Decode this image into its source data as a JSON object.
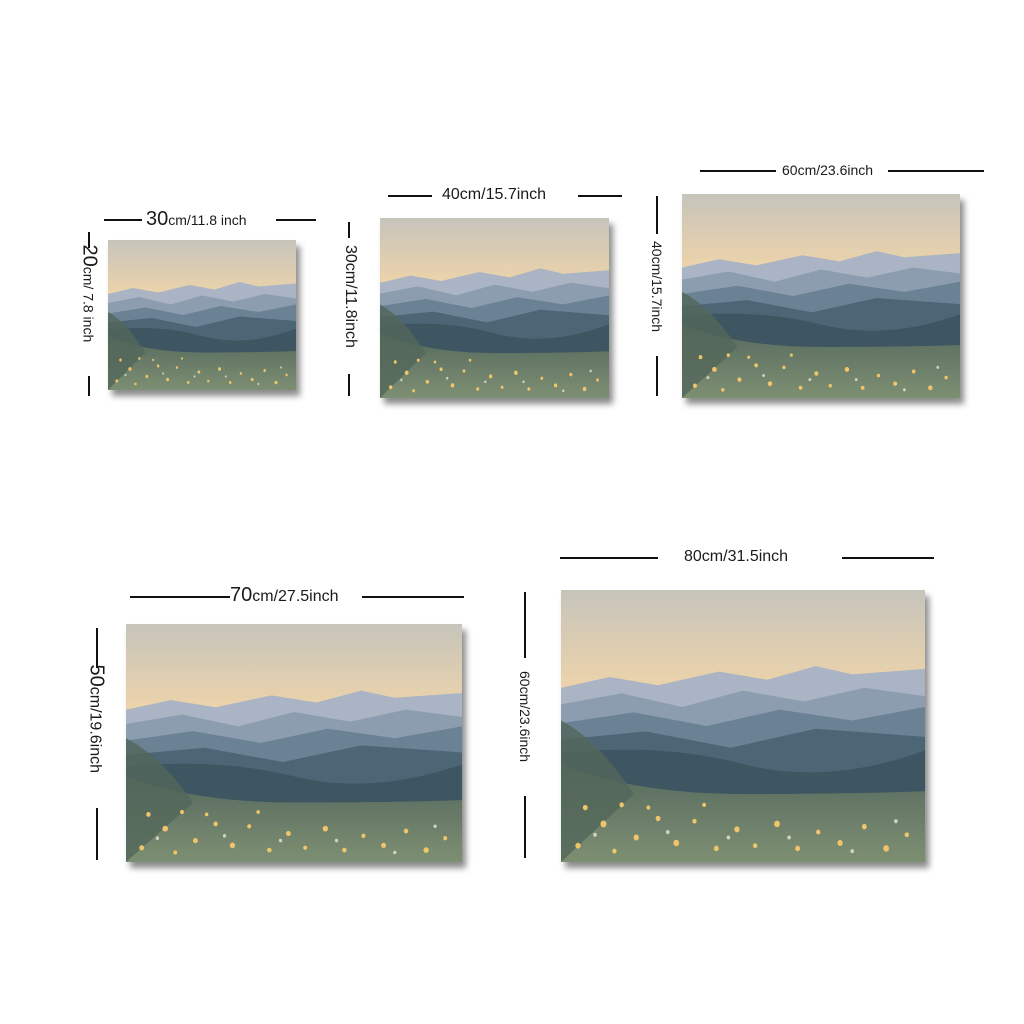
{
  "sizes": [
    {
      "width_cm": "30",
      "width_in": "cm/11.8 inch",
      "height_cm": "20",
      "height_in": "cm/ 7.8 inch"
    },
    {
      "width_label": "40cm/15.7inch",
      "height_label": "30cm/11.8inch"
    },
    {
      "width_label": "60cm/23.6inch",
      "height_label": "40cm/15.7inch"
    },
    {
      "width_cm": "70",
      "width_in": "cm/27.5inch",
      "height_cm": "50",
      "height_in": "cm/19.6inch"
    },
    {
      "width_label": "80cm/31.5inch",
      "height_label": "60cm/23.6inch"
    }
  ],
  "artwork": {
    "subject": "watercolor-mountain-landscape",
    "colors": {
      "sky_top": "#c9c7bd",
      "sky_glow": "#f6d9a8",
      "sky_pink": "#f3cfc4",
      "far_ridge": "#a9b3c4",
      "mid_ridge": "#7f93a6",
      "near_ridge": "#4f6878",
      "forest": "#3d5560",
      "meadow": "#6e8063",
      "flowers": "#f0c46a"
    }
  }
}
